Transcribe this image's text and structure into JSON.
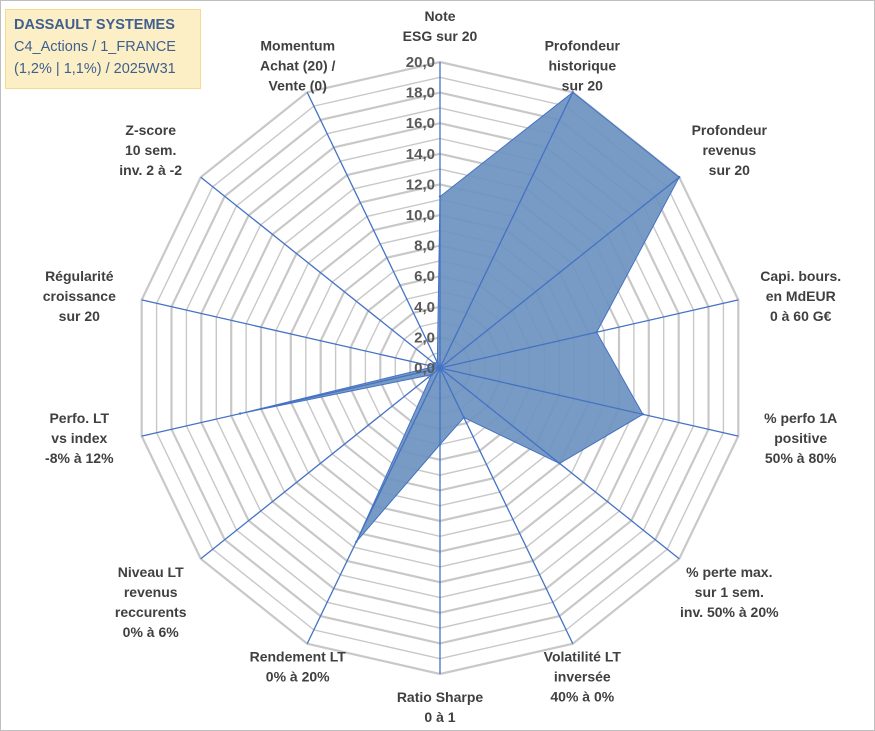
{
  "title_box": {
    "line1": "DASSAULT SYSTEMES",
    "line2": "C4_Actions / 1_FRANCE",
    "line3": "(1,2% | 1,1%) / 2025W31"
  },
  "colors": {
    "fill": "#6d93c0",
    "spoke": "#4472c4",
    "grid": "#c8c8c8",
    "title_bg": "#fcefc5",
    "title_text": "#3f5f8f"
  },
  "chart_data": {
    "type": "radar",
    "rmin": 0,
    "rmax": 20,
    "tick_labels": [
      "0,0",
      "2,0",
      "4,0",
      "6,0",
      "8,0",
      "10,0",
      "12,0",
      "14,0",
      "16,0",
      "18,0",
      "20,0"
    ],
    "axes": [
      [
        "Note",
        "ESG sur 20"
      ],
      [
        "Profondeur",
        "historique",
        "sur 20"
      ],
      [
        "Profondeur",
        "revenus",
        "sur 20"
      ],
      [
        "Capi. bours.",
        "en MdEUR",
        "0 à 60 G€"
      ],
      [
        "% perfo 1A",
        "positive",
        "50% à 80%"
      ],
      [
        "% perte max.",
        "sur 1 sem.",
        "inv. 50% à 20%"
      ],
      [
        "Volatilité LT",
        "inversée",
        "40% à 0%"
      ],
      [
        "Ratio Sharpe",
        "0 à 1"
      ],
      [
        "Rendement LT",
        "0% à 20%"
      ],
      [
        "Niveau LT",
        "revenus",
        "reccurents",
        "0% à 6%"
      ],
      [
        "Perfo. LT",
        "vs index",
        "-8% à 12%"
      ],
      [
        "Régularité",
        "croissance",
        "sur 20"
      ],
      [
        "Z-score",
        "10 sem.",
        "inv. 2 à -2"
      ],
      [
        "Momentum",
        "Achat (20) /",
        "Vente (0)"
      ]
    ],
    "values": [
      11.2,
      20.0,
      20.0,
      10.5,
      13.6,
      10.0,
      3.6,
      5.0,
      12.6,
      0.7,
      13.4,
      0.4,
      0.5,
      0.4
    ]
  }
}
